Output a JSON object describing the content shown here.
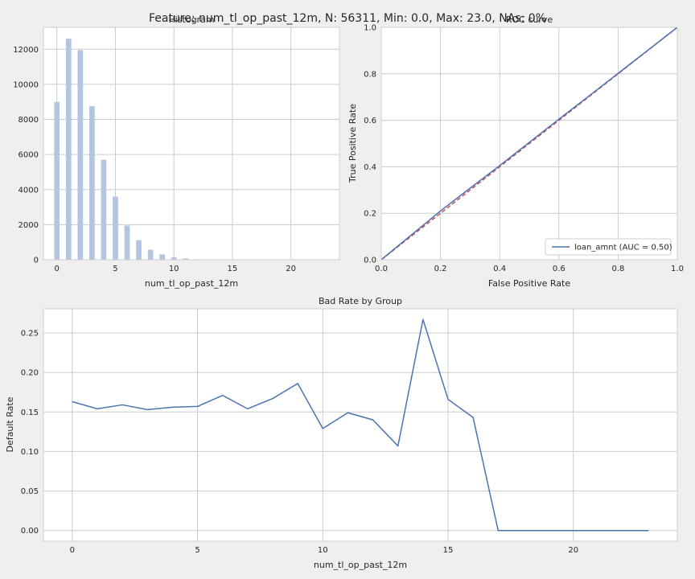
{
  "suptitle": "Feature: num_tl_op_past_12m, N: 56311, Min: 0.0, Max: 23.0, NAs: 0%",
  "colors": {
    "background": "#efefef",
    "axes_face": "#ffffff",
    "grid": "#cccccc",
    "spine": "#cccccc",
    "hist_bar": "#b3c5e0",
    "line": "#4c72b0",
    "diagonal": "#c44e52"
  },
  "chart_data": [
    {
      "type": "bar",
      "title": "Histogram",
      "xlabel": "num_tl_op_past_12m",
      "ylabel": "",
      "xlim": [
        -1.15,
        24.15
      ],
      "ylim": [
        0,
        13250
      ],
      "bin_width": 0.46,
      "bins": [
        {
          "x": 0.0,
          "count": 9000
        },
        {
          "x": 1.0,
          "count": 12600
        },
        {
          "x": 2.0,
          "count": 11950
        },
        {
          "x": 3.0,
          "count": 8750
        },
        {
          "x": 4.0,
          "count": 5700
        },
        {
          "x": 5.0,
          "count": 3600
        },
        {
          "x": 6.0,
          "count": 1950
        },
        {
          "x": 7.0,
          "count": 1120
        },
        {
          "x": 8.0,
          "count": 570
        },
        {
          "x": 9.0,
          "count": 300
        },
        {
          "x": 10.0,
          "count": 150
        },
        {
          "x": 11.0,
          "count": 80
        },
        {
          "x": 12.0,
          "count": 30
        },
        {
          "x": 13.0,
          "count": 12
        },
        {
          "x": 14.0,
          "count": 8
        },
        {
          "x": 15.0,
          "count": 4
        },
        {
          "x": 16.0,
          "count": 3
        },
        {
          "x": 17.0,
          "count": 2
        },
        {
          "x": 18.0,
          "count": 1
        },
        {
          "x": 19.0,
          "count": 1
        },
        {
          "x": 20.0,
          "count": 1
        },
        {
          "x": 21.0,
          "count": 1
        },
        {
          "x": 22.0,
          "count": 1
        },
        {
          "x": 23.0,
          "count": 1
        }
      ],
      "xticks": [
        0,
        5,
        10,
        15,
        20
      ],
      "yticks": [
        0,
        2000,
        4000,
        6000,
        8000,
        10000,
        12000
      ],
      "grid": true
    },
    {
      "type": "line",
      "title": "ROC curve",
      "xlabel": "False Positive Rate",
      "ylabel": "True Positive Rate",
      "xlim": [
        0,
        1
      ],
      "ylim": [
        0,
        1
      ],
      "xticks": [
        "0.0",
        "0.2",
        "0.4",
        "0.6",
        "0.8",
        "1.0"
      ],
      "yticks": [
        "0.0",
        "0.2",
        "0.4",
        "0.6",
        "0.8",
        "1.0"
      ],
      "series": [
        {
          "name": "loan_amnt (AUC = 0.50)",
          "color": "#4c72b0",
          "x": [
            0,
            0.1,
            0.2,
            0.3,
            0.4,
            0.5,
            0.6,
            0.7,
            0.8,
            0.9,
            1.0
          ],
          "y": [
            0,
            0.105,
            0.21,
            0.308,
            0.405,
            0.505,
            0.605,
            0.703,
            0.802,
            0.901,
            1.0
          ]
        }
      ],
      "reference_line": {
        "x": [
          0,
          1
        ],
        "y": [
          0,
          1
        ],
        "color": "#c44e52",
        "style": "dashed"
      },
      "legend": "lower-right",
      "grid": true
    },
    {
      "type": "line",
      "title": "Bad Rate by Group",
      "xlabel": "num_tl_op_past_12m",
      "ylabel": "Default Rate",
      "xlim": [
        -1.15,
        24.15
      ],
      "ylim": [
        -0.0135,
        0.2805
      ],
      "xticks": [
        0,
        5,
        10,
        15,
        20
      ],
      "yticks": [
        "0.00",
        "0.05",
        "0.10",
        "0.15",
        "0.20",
        "0.25"
      ],
      "series": [
        {
          "color": "#4c72b0",
          "x": [
            0,
            1,
            2,
            3,
            4,
            5,
            6,
            7,
            8,
            9,
            10,
            11,
            12,
            13,
            14,
            15,
            16,
            17,
            23
          ],
          "y": [
            0.163,
            0.154,
            0.159,
            0.153,
            0.156,
            0.157,
            0.171,
            0.154,
            0.167,
            0.186,
            0.129,
            0.149,
            0.14,
            0.107,
            0.267,
            0.166,
            0.143,
            0.0,
            0.0
          ]
        }
      ],
      "grid": true
    }
  ]
}
